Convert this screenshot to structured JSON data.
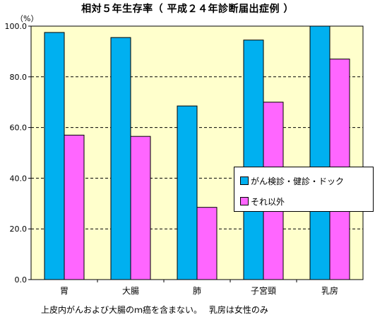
{
  "chart_data": {
    "type": "bar",
    "title": "相対５年生存率（ 平成２４年診断届出症例 ）",
    "ylabel_unit": "（%）",
    "categories": [
      "胃",
      "大腸",
      "肺",
      "子宮頸",
      "乳房"
    ],
    "series": [
      {
        "name": "がん検診・健診・ドック",
        "color": "#00b0f0",
        "values": [
          97.5,
          95.5,
          68.5,
          94.5,
          100.0
        ]
      },
      {
        "name": "それ以外",
        "color": "#ff66ff",
        "values": [
          57.0,
          56.5,
          28.5,
          70.0,
          87.0
        ]
      }
    ],
    "ylim": [
      0,
      100
    ],
    "yticks": [
      "0.0",
      "20.0",
      "40.0",
      "60.0",
      "80.0",
      "100.0"
    ],
    "grid": true,
    "legend_position": "right",
    "plot_background": "#ffffcc",
    "footnote": "上皮内がんおよび大腸のｍ癌を含まない。　 乳房は女性のみ"
  }
}
